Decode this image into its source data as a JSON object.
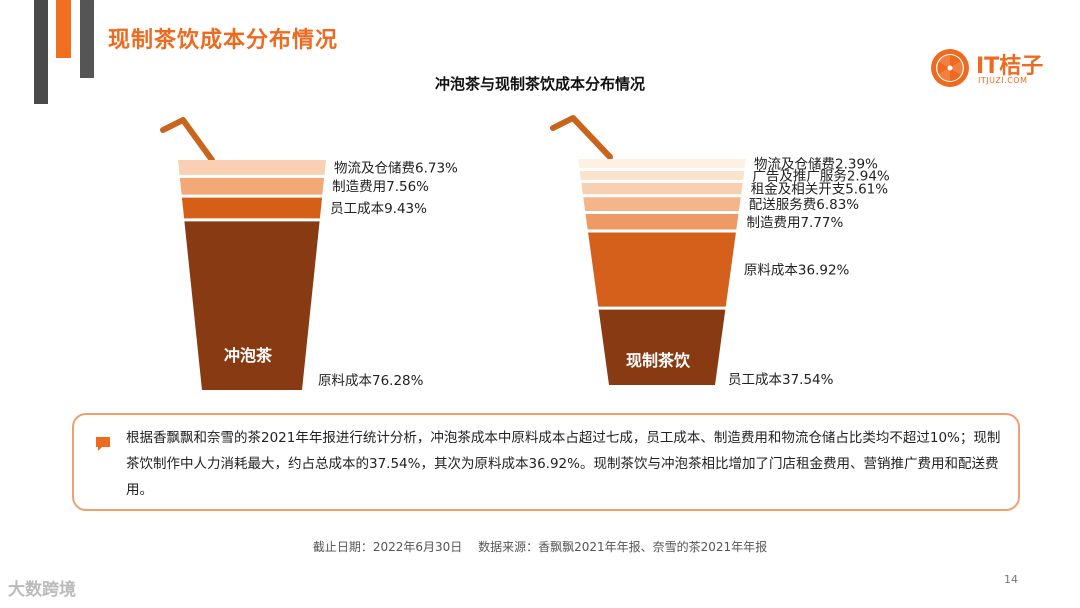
{
  "page": {
    "title": "现制茶饮成本分布情况",
    "brand": {
      "name": "IT桔子",
      "sub": "ITJUZI.COM",
      "color": "#ee6a1f"
    },
    "watermark": "大数跨境",
    "page_number": "14"
  },
  "chart_data": [
    {
      "type": "stacked-bar",
      "title": "冲泡茶与现制茶饮成本分布情况",
      "category": "冲泡茶",
      "unit": "%",
      "segments_top_to_bottom": [
        {
          "name": "物流及仓储费",
          "value": 6.73,
          "label": "物流及仓储费6.73%",
          "color": "#f9d0b2"
        },
        {
          "name": "制造费用",
          "value": 7.56,
          "label": "制造费用7.56%",
          "color": "#f3a878"
        },
        {
          "name": "员工成本",
          "value": 9.43,
          "label": "员工成本9.43%",
          "color": "#d65f18"
        },
        {
          "name": "原料成本",
          "value": 76.28,
          "label": "原料成本76.28%",
          "color": "#883a12"
        }
      ]
    },
    {
      "type": "stacked-bar",
      "category": "现制茶饮",
      "unit": "%",
      "segments_top_to_bottom": [
        {
          "name": "物流及仓储费",
          "value": 2.39,
          "label": "物流及仓储费2.39%",
          "color": "#fdf1e4"
        },
        {
          "name": "广告及推广服务",
          "value": 2.94,
          "label": "广告及推广服务2.94%",
          "color": "#fbe2cd"
        },
        {
          "name": "租金及相关开支",
          "value": 5.61,
          "label": "租金及相关开支5.61%",
          "color": "#f8cfb0"
        },
        {
          "name": "配送服务费",
          "value": 6.83,
          "label": "配送服务费6.83%",
          "color": "#f5b58a"
        },
        {
          "name": "制造费用",
          "value": 7.77,
          "label": "制造费用7.77%",
          "color": "#ee9a64"
        },
        {
          "name": "原料成本",
          "value": 36.92,
          "label": "原料成本36.92%",
          "color": "#d4601c"
        },
        {
          "name": "员工成本",
          "value": 37.54,
          "label": "员工成本37.54%",
          "color": "#883a12"
        }
      ]
    }
  ],
  "note": {
    "text": "根据香飘飘和奈雪的茶2021年年报进行统计分析，冲泡茶成本中原料成本占超过七成，员工成本、制造费用和物流仓储占比类均不超过10%；现制茶饮制作中人力消耗最大，约占总成本的37.54%，其次为原料成本36.92%。现制茶饮与冲泡茶相比增加了门店租金费用、营销推广费用和配送费用。"
  },
  "footer": {
    "source": "截止日期：2022年6月30日　 数据来源：香飘飘2021年年报、奈雪的茶2021年年报"
  }
}
